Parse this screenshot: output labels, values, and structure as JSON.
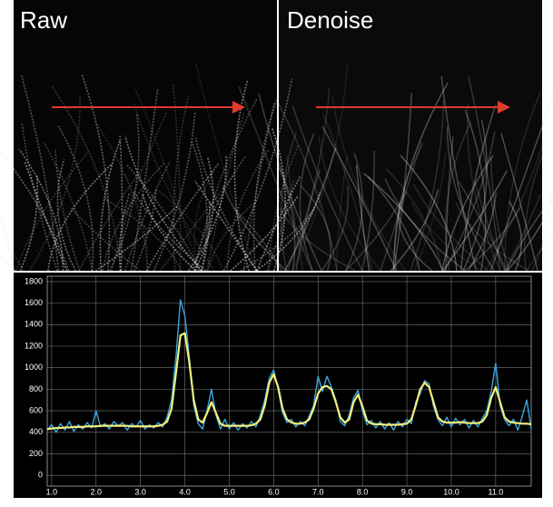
{
  "panels": {
    "left_label": "Raw",
    "right_label": "Denoise"
  },
  "chart_data": {
    "type": "line",
    "x": [
      0.9,
      1.0,
      1.1,
      1.2,
      1.3,
      1.4,
      1.5,
      1.6,
      1.7,
      1.8,
      1.9,
      2.0,
      2.1,
      2.2,
      2.3,
      2.4,
      2.5,
      2.6,
      2.7,
      2.8,
      2.9,
      3.0,
      3.1,
      3.2,
      3.3,
      3.4,
      3.5,
      3.6,
      3.7,
      3.8,
      3.9,
      4.0,
      4.1,
      4.2,
      4.3,
      4.4,
      4.5,
      4.6,
      4.7,
      4.8,
      4.9,
      5.0,
      5.1,
      5.2,
      5.3,
      5.4,
      5.5,
      5.6,
      5.7,
      5.8,
      5.9,
      6.0,
      6.1,
      6.2,
      6.3,
      6.4,
      6.5,
      6.6,
      6.7,
      6.8,
      6.9,
      7.0,
      7.1,
      7.2,
      7.3,
      7.4,
      7.5,
      7.6,
      7.7,
      7.8,
      7.9,
      8.0,
      8.1,
      8.2,
      8.3,
      8.4,
      8.5,
      8.6,
      8.7,
      8.8,
      8.9,
      9.0,
      9.1,
      9.2,
      9.3,
      9.4,
      9.5,
      9.6,
      9.7,
      9.8,
      9.9,
      10.0,
      10.1,
      10.2,
      10.3,
      10.4,
      10.5,
      10.6,
      10.7,
      10.8,
      10.9,
      11.0,
      11.1,
      11.2,
      11.3,
      11.4,
      11.5,
      11.6,
      11.7,
      11.8
    ],
    "series": [
      {
        "color": "#3aa6e0",
        "values": [
          420,
          470,
          400,
          480,
          420,
          500,
          410,
          470,
          430,
          490,
          440,
          600,
          450,
          480,
          430,
          500,
          460,
          490,
          420,
          480,
          450,
          510,
          430,
          470,
          440,
          490,
          450,
          540,
          700,
          1100,
          1630,
          1480,
          1100,
          650,
          480,
          430,
          600,
          800,
          560,
          430,
          520,
          430,
          490,
          420,
          480,
          440,
          500,
          450,
          560,
          700,
          900,
          980,
          800,
          580,
          490,
          520,
          450,
          500,
          460,
          550,
          650,
          920,
          780,
          920,
          820,
          700,
          500,
          460,
          560,
          720,
          790,
          600,
          470,
          510,
          440,
          500,
          430,
          490,
          420,
          500,
          450,
          520,
          480,
          680,
          760,
          880,
          850,
          640,
          520,
          460,
          540,
          450,
          530,
          470,
          520,
          440,
          510,
          450,
          530,
          600,
          780,
          1040,
          650,
          520,
          460,
          520,
          420,
          550,
          700,
          430
        ]
      },
      {
        "color": "#f2f07c",
        "values": [
          430,
          435,
          440,
          440,
          445,
          445,
          450,
          450,
          450,
          455,
          455,
          455,
          460,
          460,
          460,
          460,
          460,
          460,
          460,
          455,
          455,
          455,
          455,
          455,
          455,
          460,
          470,
          500,
          620,
          950,
          1300,
          1320,
          1050,
          700,
          520,
          490,
          580,
          680,
          580,
          480,
          460,
          460,
          460,
          460,
          460,
          460,
          465,
          480,
          520,
          650,
          860,
          940,
          820,
          620,
          520,
          490,
          480,
          480,
          490,
          520,
          620,
          760,
          820,
          830,
          800,
          680,
          540,
          490,
          520,
          680,
          750,
          640,
          510,
          480,
          475,
          475,
          470,
          470,
          470,
          470,
          475,
          480,
          520,
          650,
          800,
          860,
          820,
          680,
          540,
          500,
          490,
          490,
          490,
          495,
          490,
          485,
          485,
          485,
          500,
          560,
          720,
          820,
          680,
          540,
          500,
          490,
          485,
          480,
          480,
          475
        ]
      }
    ],
    "xlim": [
      0.9,
      11.8
    ],
    "ylim": [
      -100,
      1850
    ],
    "xticks": [
      {
        "value": 1,
        "label": "1.0"
      },
      {
        "value": 2,
        "label": "2.0"
      },
      {
        "value": 3,
        "label": "3.0"
      },
      {
        "value": 4,
        "label": "4.0"
      },
      {
        "value": 5,
        "label": "5.0"
      },
      {
        "value": 6,
        "label": "6.0"
      },
      {
        "value": 7,
        "label": "7.0"
      },
      {
        "value": 8,
        "label": "8.0"
      },
      {
        "value": 9,
        "label": "9.0"
      },
      {
        "value": 10,
        "label": "10.0"
      },
      {
        "value": 11,
        "label": "11.0"
      }
    ],
    "yticks": [
      0,
      200,
      400,
      600,
      800,
      1000,
      1200,
      1400,
      1600,
      1800
    ],
    "grid": true
  }
}
